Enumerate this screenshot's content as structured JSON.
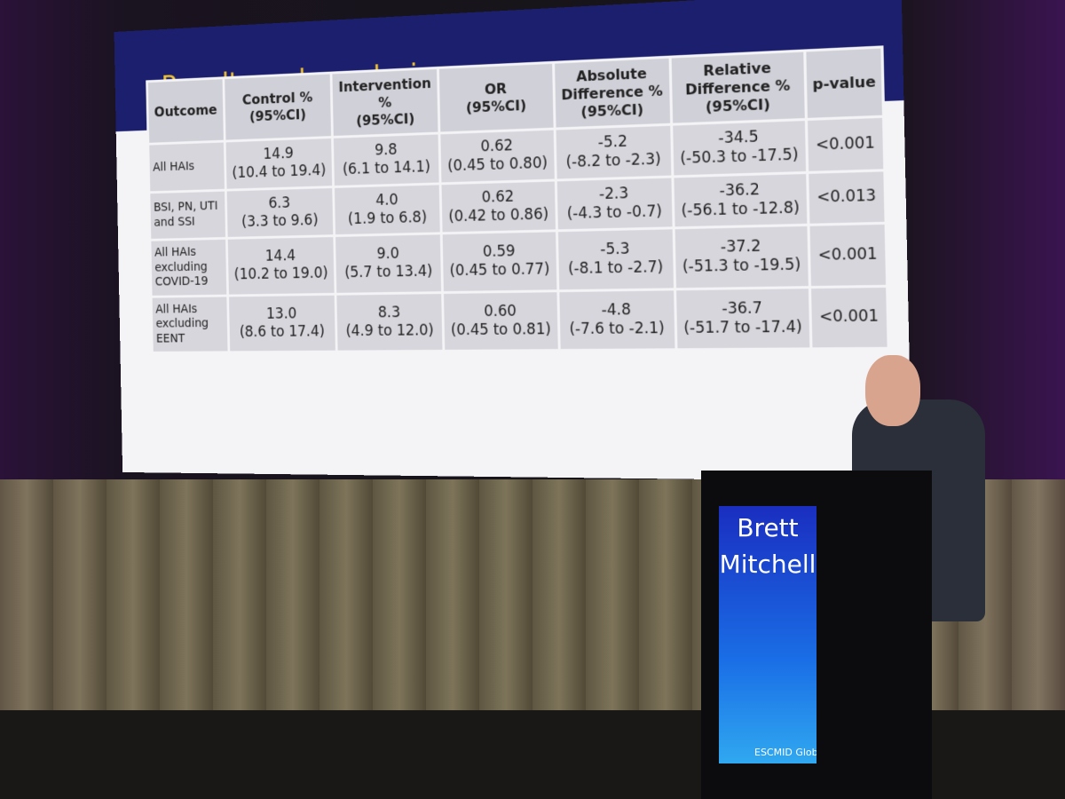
{
  "slide": {
    "title": "Results: sub-analysis"
  },
  "table": {
    "header": [
      [
        "Outcome"
      ],
      [
        "Control %",
        "(95%CI)"
      ],
      [
        "Intervention",
        "%",
        "(95%CI)"
      ],
      [
        "OR",
        "(95%CI)"
      ],
      [
        "Absolute",
        "Difference %",
        "(95%CI)"
      ],
      [
        "Relative",
        "Difference %",
        "(95%CI)"
      ],
      [
        "p-value"
      ]
    ],
    "rows": [
      [
        [
          "All HAIs"
        ],
        [
          "14.9",
          "(10.4 to 19.4)"
        ],
        [
          "9.8",
          "(6.1 to 14.1)"
        ],
        [
          "0.62",
          "(0.45 to 0.80)"
        ],
        [
          "-5.2",
          "(-8.2 to -2.3)"
        ],
        [
          "-34.5",
          "(-50.3 to -17.5)"
        ],
        [
          "<0.001"
        ]
      ],
      [
        [
          "BSI, PN, UTI",
          "and SSI"
        ],
        [
          "6.3",
          "(3.3 to 9.6)"
        ],
        [
          "4.0",
          "(1.9 to 6.8)"
        ],
        [
          "0.62",
          "(0.42 to 0.86)"
        ],
        [
          "-2.3",
          "(-4.3 to -0.7)"
        ],
        [
          "-36.2",
          "(-56.1 to -12.8)"
        ],
        [
          "<0.013"
        ]
      ],
      [
        [
          "All HAIs",
          "excluding",
          "COVID-19"
        ],
        [
          "14.4",
          "(10.2 to 19.0)"
        ],
        [
          "9.0",
          "(5.7 to 13.4)"
        ],
        [
          "0.59",
          "(0.45 to 0.77)"
        ],
        [
          "-5.3",
          "(-8.1 to -2.7)"
        ],
        [
          "-37.2",
          "(-51.3 to -19.5)"
        ],
        [
          "<0.001"
        ]
      ],
      [
        [
          "All HAIs",
          "excluding",
          "EENT"
        ],
        [
          "13.0",
          "(8.6 to 17.4)"
        ],
        [
          "8.3",
          "(4.9 to 12.0)"
        ],
        [
          "0.60",
          "(0.45 to 0.81)"
        ],
        [
          "-4.8",
          "(-7.6 to -2.1)"
        ],
        [
          "-36.7",
          "(-51.7 to -17.4)"
        ],
        [
          "<0.001"
        ]
      ]
    ]
  },
  "podium": {
    "name": [
      "Brett",
      "Mitchell"
    ],
    "logo": "ESCMID Globa"
  }
}
